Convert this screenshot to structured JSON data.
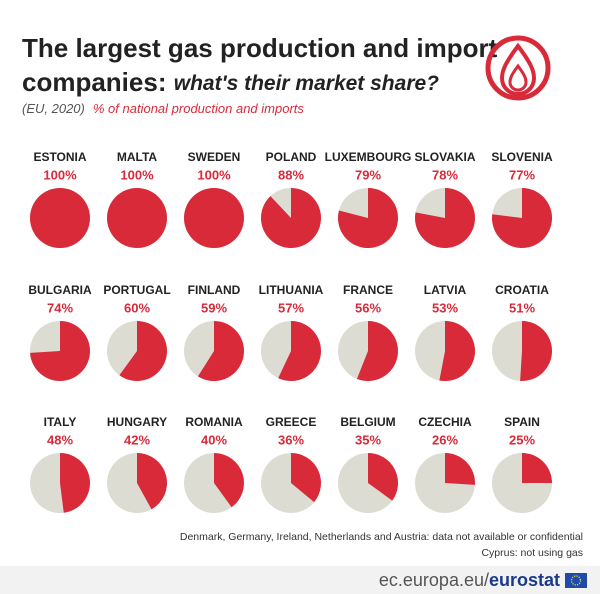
{
  "chart_data": {
    "type": "pie",
    "title": "The largest gas production and import",
    "title_line2": "companies:",
    "title_emphasis": "what's their market share?",
    "subtitle": "(EU, 2020)",
    "unit_label": "% of national production and imports",
    "categories": [
      "ESTONIA",
      "MALTA",
      "SWEDEN",
      "POLAND",
      "LUXEMBOURG",
      "SLOVAKIA",
      "SLOVENIA",
      "BULGARIA",
      "PORTUGAL",
      "FINLAND",
      "LITHUANIA",
      "FRANCE",
      "LATVIA",
      "CROATIA",
      "ITALY",
      "HUNGARY",
      "ROMANIA",
      "GREECE",
      "BELGIUM",
      "CZECHIA",
      "SPAIN"
    ],
    "values": [
      100,
      100,
      100,
      88,
      79,
      78,
      77,
      74,
      60,
      59,
      57,
      56,
      53,
      51,
      48,
      42,
      40,
      36,
      35,
      26,
      25
    ],
    "value_labels": [
      "100%",
      "100%",
      "100%",
      "88%",
      "79%",
      "78%",
      "77%",
      "74%",
      "60%",
      "59%",
      "57%",
      "56%",
      "53%",
      "51%",
      "48%",
      "42%",
      "40%",
      "36%",
      "35%",
      "26%",
      "25%"
    ],
    "color": "#d92a3a",
    "rest_color": "#dcdcd3",
    "notes": [
      "Denmark, Germany, Ireland, Netherlands and Austria: data not available or confidential",
      "Cyprus: not using gas"
    ],
    "source": [
      "ec.europa.eu/",
      "eurostat"
    ]
  }
}
